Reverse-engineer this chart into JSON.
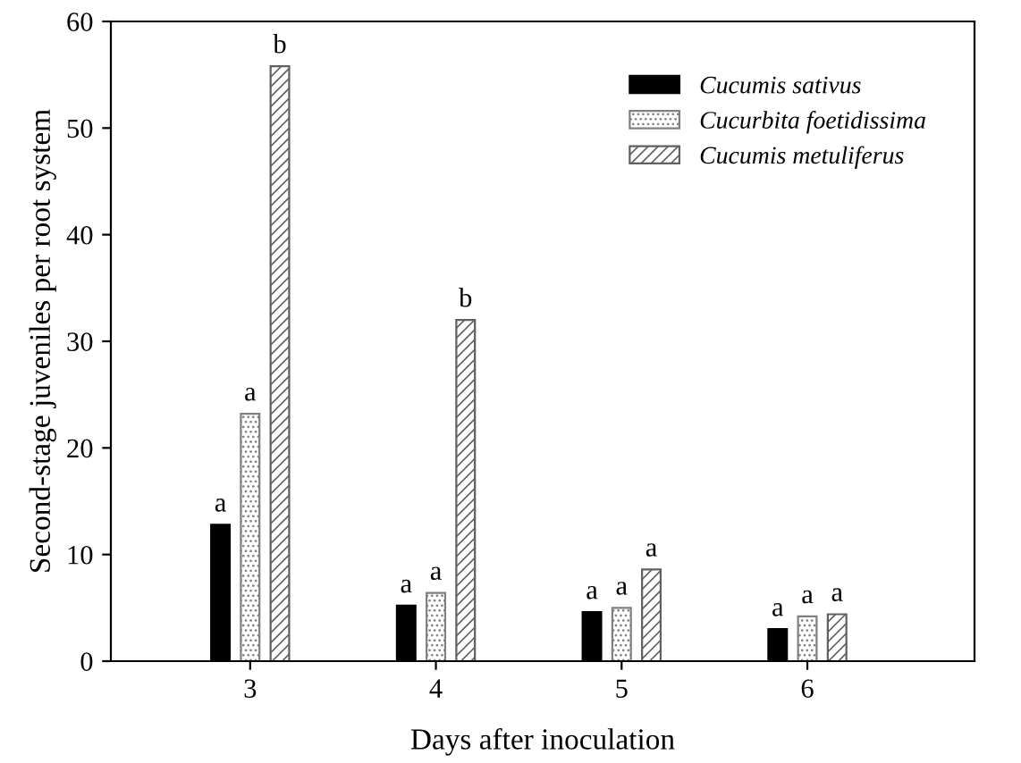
{
  "chart_data": {
    "type": "bar",
    "xlabel": "Days after inoculation",
    "ylabel": "Second-stage juveniles per root system",
    "categories": [
      "3",
      "4",
      "5",
      "6"
    ],
    "series": [
      {
        "name": "Cucumis sativus",
        "color": "#000000",
        "values": [
          12.8,
          5.2,
          4.6,
          3.0
        ],
        "value_labels": [
          "a",
          "a",
          "a",
          "a"
        ]
      },
      {
        "name": "Cucurbita foetidissima",
        "color": "#808080",
        "values": [
          23.2,
          6.4,
          5.0,
          4.2
        ],
        "value_labels": [
          "a",
          "a",
          "a",
          "a"
        ]
      },
      {
        "name": "Cucumis metuliferus",
        "color": "#606060",
        "values": [
          55.8,
          32,
          8.6,
          4.4
        ],
        "value_labels": [
          "b",
          "b",
          "a",
          "a"
        ]
      }
    ],
    "ylim": [
      0,
      60
    ],
    "yticks": [
      0,
      10,
      20,
      30,
      40,
      50,
      60
    ],
    "grid": false,
    "legend": "top right"
  }
}
